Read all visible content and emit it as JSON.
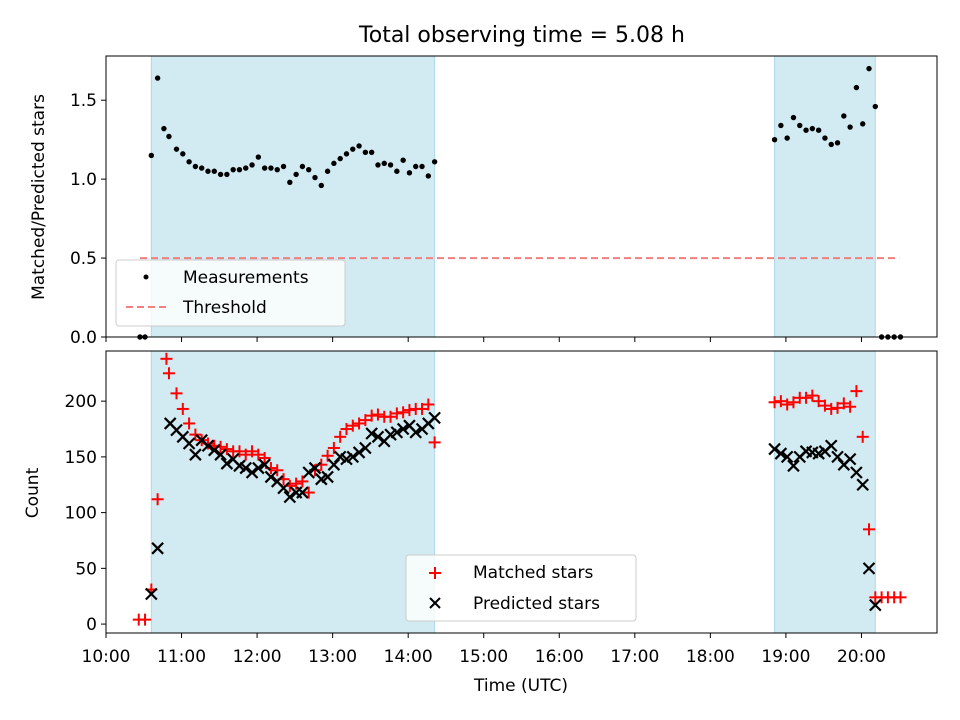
{
  "figure_title": "Total observing time = 5.08 h",
  "colors": {
    "shade": "#add8e6",
    "measurements": "#000000",
    "threshold": "#f08080",
    "matched": "#ff0000",
    "predicted": "#000000"
  },
  "chart_data": [
    {
      "type": "scatter",
      "title": "",
      "xlabel": "",
      "ylabel": "Matched/Predicted stars",
      "xlim": [
        "10:00",
        "21:00"
      ],
      "ylim": [
        0,
        1.78
      ],
      "y_ticks": [
        "0.0",
        "0.5",
        "1.0",
        "1.5"
      ],
      "y_tick_values": [
        0,
        0.5,
        1.0,
        1.5
      ],
      "grid": false,
      "legend_position": "lower-left",
      "shaded_intervals": [
        [
          "10:36",
          "14:21"
        ],
        [
          "18:51",
          "20:11"
        ]
      ],
      "threshold": {
        "name": "Threshold",
        "value": 0.5,
        "x_range": [
          "10:27",
          "20:30"
        ]
      },
      "series": [
        {
          "name": "Measurements",
          "x": [
            "10:27",
            "10:31",
            "10:36",
            "10:41",
            "10:46",
            "10:50",
            "10:56",
            "11:01",
            "11:06",
            "11:11",
            "11:16",
            "11:21",
            "11:26",
            "11:31",
            "11:36",
            "11:41",
            "11:46",
            "11:51",
            "11:56",
            "12:01",
            "12:06",
            "12:11",
            "12:16",
            "12:21",
            "12:26",
            "12:31",
            "12:36",
            "12:41",
            "12:46",
            "12:51",
            "12:56",
            "13:01",
            "13:06",
            "13:11",
            "13:16",
            "13:21",
            "13:26",
            "13:31",
            "13:36",
            "13:41",
            "13:46",
            "13:51",
            "13:56",
            "14:01",
            "14:06",
            "14:11",
            "14:16",
            "14:21",
            "18:51",
            "18:56",
            "19:01",
            "19:06",
            "19:11",
            "19:16",
            "19:21",
            "19:26",
            "19:31",
            "19:36",
            "19:41",
            "19:46",
            "19:51",
            "19:56",
            "20:01",
            "20:06",
            "20:11",
            "20:16",
            "20:21",
            "20:26",
            "20:31"
          ],
          "y": [
            0,
            0,
            1.15,
            1.64,
            1.32,
            1.27,
            1.19,
            1.16,
            1.11,
            1.08,
            1.07,
            1.05,
            1.05,
            1.03,
            1.03,
            1.06,
            1.06,
            1.07,
            1.09,
            1.14,
            1.07,
            1.07,
            1.06,
            1.08,
            0.98,
            1.03,
            1.08,
            1.06,
            1.01,
            0.96,
            1.05,
            1.1,
            1.13,
            1.16,
            1.19,
            1.21,
            1.17,
            1.17,
            1.09,
            1.1,
            1.09,
            1.05,
            1.12,
            1.04,
            1.08,
            1.08,
            1.02,
            1.11,
            1.25,
            1.34,
            1.26,
            1.39,
            1.34,
            1.31,
            1.32,
            1.31,
            1.26,
            1.22,
            1.23,
            1.4,
            1.33,
            1.58,
            1.35,
            1.7,
            1.46,
            0,
            0,
            0,
            0
          ]
        }
      ]
    },
    {
      "type": "scatter",
      "title": "",
      "xlabel": "Time (UTC)",
      "ylabel": "Count",
      "xlim": [
        "10:00",
        "21:00"
      ],
      "ylim": [
        -8,
        245
      ],
      "x_ticks": [
        "10:00",
        "11:00",
        "12:00",
        "13:00",
        "14:00",
        "15:00",
        "16:00",
        "17:00",
        "18:00",
        "19:00",
        "20:00"
      ],
      "y_ticks": [
        "0",
        "50",
        "100",
        "150",
        "200"
      ],
      "y_tick_values": [
        0,
        50,
        100,
        150,
        200
      ],
      "grid": false,
      "legend_position": "lower-center",
      "shaded_intervals": [
        [
          "10:36",
          "14:21"
        ],
        [
          "18:51",
          "20:11"
        ]
      ],
      "series": [
        {
          "name": "Matched stars",
          "marker": "plus",
          "x": [
            "10:26",
            "10:31",
            "10:36",
            "10:41",
            "10:48",
            "10:50",
            "10:56",
            "11:01",
            "11:06",
            "11:11",
            "11:16",
            "11:21",
            "11:26",
            "11:31",
            "11:36",
            "11:41",
            "11:46",
            "11:51",
            "11:56",
            "12:01",
            "12:06",
            "12:11",
            "12:16",
            "12:21",
            "12:26",
            "12:31",
            "12:36",
            "12:41",
            "12:46",
            "12:51",
            "12:56",
            "13:01",
            "13:06",
            "13:11",
            "13:16",
            "13:21",
            "13:26",
            "13:31",
            "13:36",
            "13:41",
            "13:46",
            "13:51",
            "13:56",
            "14:01",
            "14:06",
            "14:11",
            "14:16",
            "14:21",
            "18:51",
            "18:56",
            "19:01",
            "19:06",
            "19:11",
            "19:16",
            "19:21",
            "19:26",
            "19:31",
            "19:36",
            "19:41",
            "19:46",
            "19:51",
            "19:56",
            "20:01",
            "20:06",
            "20:11",
            "20:16",
            "20:21",
            "20:26",
            "20:31"
          ],
          "y": [
            4,
            4,
            31,
            112,
            238,
            225,
            207,
            193,
            180,
            170,
            165,
            162,
            160,
            159,
            157,
            155,
            155,
            152,
            155,
            152,
            149,
            140,
            138,
            130,
            124,
            126,
            128,
            118,
            138,
            143,
            151,
            158,
            168,
            175,
            178,
            180,
            183,
            187,
            188,
            186,
            186,
            189,
            190,
            192,
            193,
            193,
            197,
            163,
            199,
            200,
            197,
            199,
            203,
            203,
            205,
            200,
            196,
            193,
            194,
            198,
            195,
            209,
            168,
            85,
            24,
            24,
            24,
            24,
            24
          ]
        },
        {
          "name": "Predicted stars",
          "marker": "x",
          "x": [
            "10:36",
            "10:41",
            "10:51",
            "10:56",
            "11:01",
            "11:06",
            "11:11",
            "11:16",
            "11:21",
            "11:26",
            "11:31",
            "11:36",
            "11:41",
            "11:46",
            "11:51",
            "11:56",
            "12:01",
            "12:06",
            "12:11",
            "12:16",
            "12:21",
            "12:26",
            "12:31",
            "12:36",
            "12:41",
            "12:46",
            "12:51",
            "12:56",
            "13:01",
            "13:06",
            "13:11",
            "13:16",
            "13:21",
            "13:26",
            "13:31",
            "13:36",
            "13:41",
            "13:46",
            "13:51",
            "13:56",
            "14:01",
            "14:06",
            "14:11",
            "14:16",
            "14:21",
            "18:51",
            "18:56",
            "19:01",
            "19:06",
            "19:11",
            "19:16",
            "19:21",
            "19:26",
            "19:31",
            "19:36",
            "19:41",
            "19:46",
            "19:51",
            "19:56",
            "20:01",
            "20:06",
            "20:11"
          ],
          "y": [
            27,
            68,
            180,
            174,
            168,
            162,
            152,
            165,
            160,
            156,
            152,
            144,
            148,
            142,
            140,
            136,
            140,
            143,
            132,
            128,
            122,
            114,
            118,
            118,
            136,
            140,
            130,
            132,
            143,
            150,
            148,
            150,
            154,
            158,
            171,
            168,
            164,
            170,
            172,
            175,
            178,
            172,
            175,
            180,
            185,
            157,
            153,
            150,
            142,
            150,
            155,
            154,
            153,
            155,
            160,
            150,
            143,
            148,
            136,
            125,
            50,
            17
          ]
        }
      ]
    }
  ]
}
